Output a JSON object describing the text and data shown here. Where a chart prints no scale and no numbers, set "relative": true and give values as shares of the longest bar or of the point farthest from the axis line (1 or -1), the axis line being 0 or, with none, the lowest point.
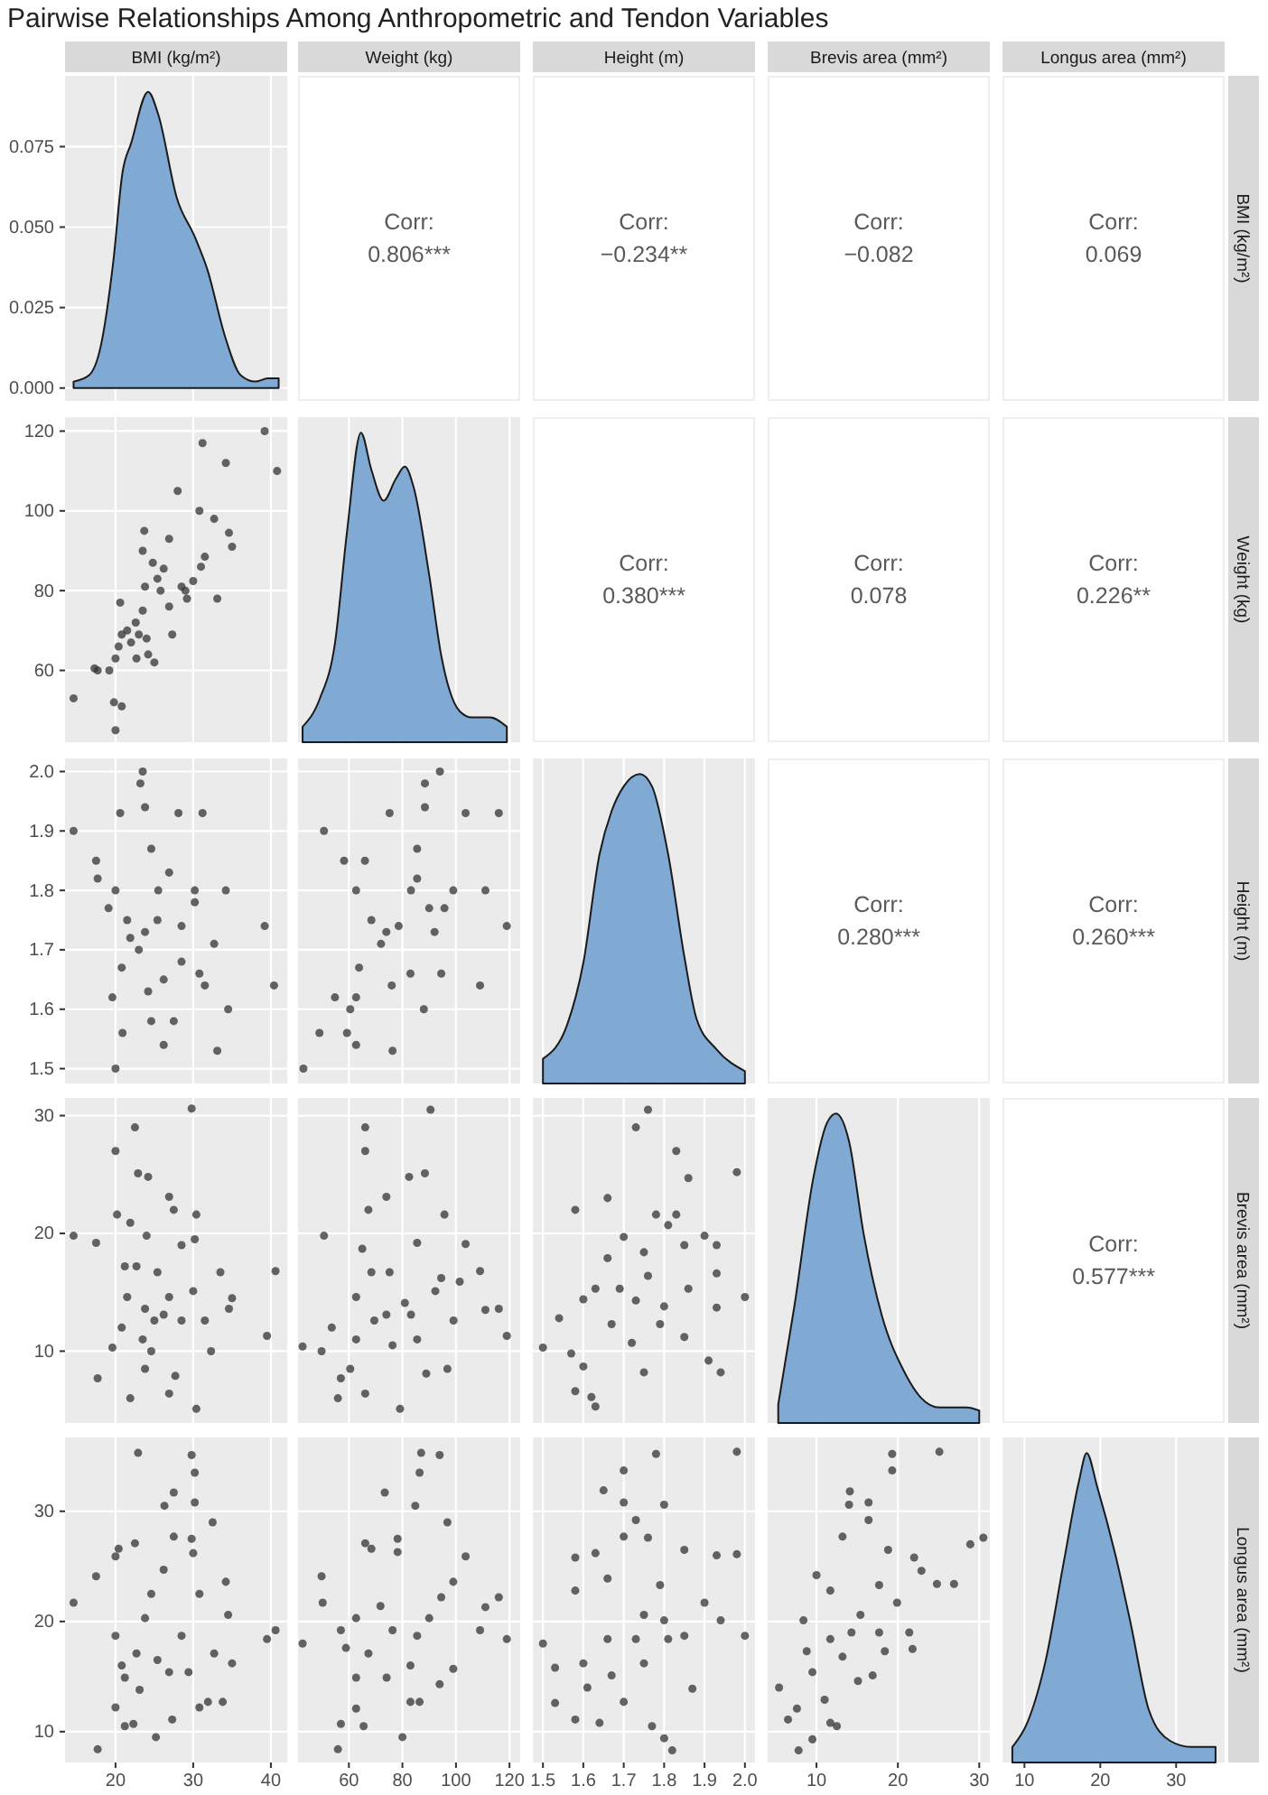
{
  "chart_data": [
    {
      "type": "other",
      "title": "Pairwise Relationships Among Anthropometric and Tendon Variables"
    },
    {
      "type": "area",
      "title": "BMI (kg/m²)",
      "x": [
        14.6,
        16.6,
        18.1,
        19.7,
        20.9,
        22,
        24.2,
        25.5,
        27.9,
        30.2,
        31.8,
        34.1,
        36.1,
        38,
        39.6,
        41
      ],
      "values": [
        0.002,
        0.004,
        0.013,
        0.039,
        0.067,
        0.076,
        0.092,
        0.085,
        0.059,
        0.047,
        0.037,
        0.016,
        0.004,
        0.002,
        0.003,
        0.003
      ],
      "color": "#7aa6d2",
      "xlim": [
        13.5,
        42.1
      ],
      "ylim": [
        -0.004,
        0.097
      ],
      "xticks": [
        20,
        30,
        40
      ],
      "yticks": [
        {
          "value": 0,
          "label": "0.000"
        },
        0.025,
        {
          "value": 0.05,
          "label": "0.050"
        },
        0.075
      ],
      "grid": true,
      "tick_labels": "y"
    },
    {
      "type": "other",
      "title": "Weight (kg)",
      "annotations": [
        "Corr:",
        "0.806***"
      ]
    },
    {
      "type": "other",
      "title": "Height (m)",
      "annotations": [
        "Corr:",
        "−0.234**"
      ]
    },
    {
      "type": "other",
      "title": "Brevis area (mm²)",
      "annotations": [
        "Corr:",
        "−0.082"
      ]
    },
    {
      "type": "other",
      "title": "Longus area (mm²)",
      "y2label": "BMI (kg/m²)",
      "annotations": [
        "Corr:",
        "0.069"
      ]
    },
    {
      "type": "scatter",
      "marker": "circle",
      "color": "#333333",
      "x": [
        14.6,
        20,
        20.8,
        19.8,
        17.7,
        17.3,
        19.2,
        20,
        20.4,
        20.8,
        21.5,
        20.6,
        23,
        22.6,
        23.5,
        23.8,
        23.5,
        23.7,
        24.8,
        25.4,
        26.2,
        26.9,
        28,
        26.9,
        27.3,
        28.5,
        30,
        30.8,
        31.5,
        31.2,
        34.2,
        33.1,
        32.7,
        34.6,
        35,
        39.2,
        40.8,
        29.2,
        24.2,
        25,
        22.7,
        22,
        25.8,
        29,
        31,
        24
      ],
      "values": [
        53,
        45,
        51,
        52,
        60,
        60.5,
        60,
        63,
        66,
        69,
        70,
        77,
        69,
        72,
        75,
        81,
        90,
        95,
        87,
        83,
        85.5,
        93,
        105,
        76,
        69,
        81,
        82.4,
        100,
        88.5,
        117,
        112,
        78,
        98,
        94.5,
        91,
        120,
        110,
        78,
        64,
        62,
        63,
        67,
        80,
        80,
        86,
        68
      ],
      "xlim": [
        13.5,
        42.1
      ],
      "ylim": [
        42,
        123.5
      ],
      "xticks": [
        20,
        30,
        40
      ],
      "yticks": [
        60,
        80,
        100,
        120
      ],
      "grid": true,
      "tick_labels": "y"
    },
    {
      "type": "area",
      "relative": true,
      "x": [
        42.7,
        49.1,
        54.8,
        59.3,
        64.5,
        68.4,
        73,
        77.5,
        80.9,
        84.3,
        90,
        94.5,
        101.4,
        106,
        112.7,
        119
      ],
      "values": [
        0.05,
        0.14,
        0.32,
        0.68,
        1,
        0.88,
        0.78,
        0.85,
        0.89,
        0.82,
        0.54,
        0.28,
        0.1,
        0.08,
        0.08,
        0.05
      ],
      "color": "#7aa6d2",
      "xlim": [
        41,
        124
      ],
      "xticks": [
        60,
        80,
        100,
        120
      ],
      "grid": "x",
      "tick_labels": false
    },
    {
      "type": "other",
      "annotations": [
        "Corr:",
        "0.380***"
      ]
    },
    {
      "type": "other",
      "annotations": [
        "Corr:",
        "0.078"
      ]
    },
    {
      "type": "other",
      "y2label": "Weight (kg)",
      "annotations": [
        "Corr:",
        "0.226**"
      ]
    },
    {
      "type": "scatter",
      "marker": "circle",
      "color": "#333333",
      "x": [
        14.6,
        23.5,
        23.2,
        23.8,
        20.6,
        28.1,
        31.2,
        17.5,
        17.7,
        20,
        19.1,
        21.5,
        24.6,
        25.5,
        26.9,
        30.2,
        34.2,
        39.2,
        40.4,
        32.7,
        30.8,
        28.5,
        26.2,
        23,
        20.8,
        19.6,
        20.9,
        24.6,
        26.2,
        33.1,
        34.5,
        24.2,
        27.5,
        30.2,
        23.8,
        25.4,
        21.9,
        20,
        31.5,
        28.5
      ],
      "values": [
        1.9,
        2.0,
        1.98,
        1.94,
        1.93,
        1.93,
        1.93,
        1.85,
        1.82,
        1.8,
        1.77,
        1.75,
        1.87,
        1.8,
        1.83,
        1.8,
        1.8,
        1.74,
        1.64,
        1.71,
        1.66,
        1.68,
        1.65,
        1.7,
        1.67,
        1.62,
        1.56,
        1.58,
        1.54,
        1.53,
        1.6,
        1.63,
        1.58,
        1.78,
        1.73,
        1.75,
        1.72,
        1.5,
        1.64,
        1.74
      ],
      "xlim": [
        13.5,
        42.1
      ],
      "ylim": [
        1.475,
        2.022
      ],
      "xticks": [
        20,
        30,
        40
      ],
      "yticks": [
        1.5,
        1.6,
        1.7,
        1.8,
        1.9,
        {
          "value": 2,
          "label": "2.0"
        }
      ],
      "grid": true,
      "tick_labels": "y"
    },
    {
      "type": "scatter",
      "marker": "circle",
      "color": "#333333",
      "x": [
        43,
        50.7,
        94,
        88.4,
        88.4,
        75.2,
        103.6,
        116,
        58.2,
        62.7,
        68.4,
        85.5,
        83.2,
        99,
        111,
        119,
        109,
        49,
        59.3,
        62.7,
        76.3,
        88,
        83,
        94.5,
        76,
        72,
        63.8,
        54.8,
        62.7,
        92,
        95.7,
        85.5,
        74,
        66,
        78.6,
        90,
        60.5
      ],
      "values": [
        1.5,
        1.9,
        2.0,
        1.98,
        1.94,
        1.93,
        1.93,
        1.93,
        1.85,
        1.8,
        1.75,
        1.87,
        1.8,
        1.8,
        1.8,
        1.74,
        1.64,
        1.56,
        1.56,
        1.54,
        1.53,
        1.6,
        1.66,
        1.66,
        1.64,
        1.71,
        1.67,
        1.62,
        1.62,
        1.73,
        1.77,
        1.82,
        1.73,
        1.85,
        1.74,
        1.77,
        1.6
      ],
      "xlim": [
        41,
        124
      ],
      "ylim": [
        1.475,
        2.022
      ],
      "xticks": [
        60,
        80,
        100,
        120
      ],
      "yticks": [
        1.5,
        1.6,
        1.7,
        1.8,
        1.9,
        2
      ],
      "grid": true,
      "tick_labels": false
    },
    {
      "type": "area",
      "relative": true,
      "x": [
        1.5,
        1.56,
        1.6,
        1.64,
        1.67,
        1.7,
        1.74,
        1.77,
        1.81,
        1.85,
        1.88,
        1.93,
        2.0
      ],
      "values": [
        0.08,
        0.19,
        0.39,
        0.74,
        0.88,
        0.96,
        1,
        0.96,
        0.74,
        0.41,
        0.21,
        0.11,
        0.04
      ],
      "color": "#7aa6d2",
      "xlim": [
        1.475,
        2.025
      ],
      "xticks": [
        1.5,
        1.6,
        1.7,
        1.8,
        1.9,
        2
      ],
      "grid": "x",
      "tick_labels": false
    },
    {
      "type": "other",
      "annotations": [
        "Corr:",
        "0.280***"
      ]
    },
    {
      "type": "other",
      "y2label": "Height (m)",
      "annotations": [
        "Corr:",
        "0.260***"
      ]
    },
    {
      "type": "scatter",
      "marker": "circle",
      "color": "#333333",
      "x": [
        14.6,
        17.5,
        17.7,
        20,
        22.5,
        22.9,
        24.2,
        26.9,
        27.5,
        29.8,
        30.4,
        20.2,
        21.9,
        24,
        30.2,
        28.5,
        39.5,
        40.6,
        34.6,
        35,
        33.5,
        31.5,
        32.3,
        30.4,
        26.9,
        21.9,
        23.8,
        24.6,
        23.5,
        20.8,
        19.6,
        21.5,
        22.7,
        25.4,
        26.9,
        28.5,
        26.2,
        30,
        27.7,
        23.8,
        25,
        21.2
      ],
      "values": [
        19.8,
        19.2,
        7.7,
        27,
        29,
        25.1,
        24.8,
        23.1,
        22,
        30.6,
        21.6,
        21.6,
        20.9,
        19.8,
        19.5,
        19,
        11.3,
        16.8,
        13.6,
        14.5,
        16.7,
        12.6,
        10,
        5.1,
        6.4,
        6,
        8.5,
        10,
        11,
        12,
        10.3,
        14.6,
        17.2,
        16.7,
        14.6,
        12.6,
        13.1,
        15.1,
        7.9,
        13.6,
        12.6,
        17.2
      ],
      "xlim": [
        13.5,
        42.1
      ],
      "ylim": [
        3.9,
        31.5
      ],
      "xticks": [
        20,
        30,
        40
      ],
      "yticks": [
        10,
        20,
        30
      ],
      "grid": true,
      "tick_labels": "y"
    },
    {
      "type": "scatter",
      "marker": "circle",
      "color": "#333333",
      "x": [
        42.7,
        50.7,
        49.8,
        55.9,
        57,
        66.1,
        66.1,
        67.3,
        74,
        82.5,
        88.4,
        90.5,
        95.7,
        103.6,
        109,
        111,
        116,
        119,
        96.8,
        88.9,
        79.1,
        66.1,
        60.5,
        53.6,
        62.7,
        68.4,
        75.2,
        80.9,
        85.5,
        92.3,
        99.1,
        69.5,
        62.7,
        76.3,
        85.5,
        94.5,
        65,
        74,
        101.4,
        83.2
      ],
      "values": [
        10.4,
        19.8,
        10,
        6,
        7.7,
        29,
        27,
        22,
        23.1,
        24.8,
        25.1,
        30.5,
        21.6,
        19.1,
        16.8,
        13.5,
        13.6,
        11.3,
        8.5,
        8.1,
        5.1,
        6.4,
        8.5,
        12,
        14.6,
        16.7,
        16.7,
        14.1,
        11,
        15.1,
        12.6,
        12.6,
        11,
        10.5,
        19.2,
        16.2,
        18.7,
        13.1,
        15.9,
        13.1
      ],
      "xlim": [
        41,
        124
      ],
      "ylim": [
        3.9,
        31.5
      ],
      "xticks": [
        60,
        80,
        100,
        120
      ],
      "yticks": [
        10,
        20,
        30
      ],
      "grid": true,
      "tick_labels": false
    },
    {
      "type": "scatter",
      "marker": "circle",
      "color": "#333333",
      "x": [
        1.76,
        1.73,
        1.83,
        1.98,
        1.86,
        1.66,
        1.58,
        1.78,
        1.83,
        1.81,
        1.9,
        1.93,
        1.7,
        1.75,
        1.66,
        1.85,
        1.93,
        2.0,
        1.93,
        1.63,
        1.6,
        1.54,
        1.5,
        1.57,
        1.6,
        1.58,
        1.62,
        1.63,
        1.72,
        1.79,
        1.85,
        1.91,
        1.94,
        1.75,
        1.67,
        1.73,
        1.8,
        1.69,
        1.76,
        1.86
      ],
      "values": [
        30.5,
        29,
        27,
        25.2,
        24.7,
        23,
        22,
        21.6,
        21.6,
        20.7,
        19.8,
        19,
        19.7,
        18.4,
        17.9,
        19,
        16.6,
        14.6,
        13.7,
        15.3,
        14.4,
        12.8,
        10.3,
        9.8,
        8.7,
        6.6,
        6.1,
        5.3,
        10.7,
        12.3,
        11.2,
        9.2,
        8.2,
        8.2,
        12.3,
        14.3,
        13.8,
        15.3,
        16.4,
        15.3
      ],
      "xlim": [
        1.475,
        2.025
      ],
      "ylim": [
        3.9,
        31.5
      ],
      "xticks": [
        1.5,
        1.6,
        1.7,
        1.8,
        1.9,
        2
      ],
      "yticks": [
        10,
        20,
        30
      ],
      "grid": true,
      "tick_labels": false
    },
    {
      "type": "area",
      "relative": true,
      "x": [
        5.3,
        7.3,
        9.6,
        11.3,
        12.4,
        14,
        15.8,
        18,
        20.7,
        22.9,
        25.1,
        28.4,
        30
      ],
      "values": [
        0.06,
        0.38,
        0.79,
        0.97,
        1,
        0.91,
        0.61,
        0.35,
        0.17,
        0.08,
        0.05,
        0.05,
        0.04
      ],
      "color": "#7aa6d2",
      "xlim": [
        4,
        31.3
      ],
      "xticks": [
        10,
        20,
        30
      ],
      "grid": "x",
      "tick_labels": false
    },
    {
      "type": "other",
      "y2label": "Brevis area (mm²)",
      "annotations": [
        "Corr:",
        "0.577***"
      ]
    },
    {
      "type": "scatter",
      "marker": "circle",
      "color": "#333333",
      "x": [
        14.6,
        17.5,
        17.7,
        20,
        21.2,
        22.3,
        25.2,
        22.9,
        29.8,
        30.2,
        30.2,
        27.5,
        26.3,
        32.5,
        22.5,
        20.4,
        20,
        27.5,
        29.8,
        30,
        34.2,
        34.5,
        39.5,
        40.6,
        35,
        33.8,
        31.9,
        30.8,
        27.3,
        20,
        21.2,
        22.7,
        23.8,
        24.6,
        26.2,
        28.5,
        30.8,
        32.7,
        25.4,
        20.8,
        23.1,
        26.9,
        29.4
      ],
      "values": [
        21.7,
        24.1,
        8.4,
        12.2,
        10.5,
        10.7,
        9.5,
        35.3,
        35.1,
        33.5,
        30.8,
        31.7,
        30.5,
        29,
        27.1,
        26.6,
        25.9,
        27.7,
        27.5,
        26.2,
        23.6,
        20.6,
        18.4,
        19.2,
        16.2,
        12.7,
        12.7,
        12.2,
        11.1,
        18.7,
        14.9,
        17.1,
        20.3,
        22.5,
        24.7,
        18.7,
        22.5,
        17.1,
        16.5,
        16,
        13.8,
        15.4,
        15.4
      ],
      "xlim": [
        13.5,
        42.1
      ],
      "ylim": [
        7.2,
        36.7
      ],
      "xticks": [
        20,
        30,
        40
      ],
      "yticks": [
        10,
        20,
        30
      ],
      "grid": true
    },
    {
      "type": "scatter",
      "marker": "circle",
      "color": "#333333",
      "x": [
        42.7,
        49.8,
        50.2,
        55.9,
        57,
        58.9,
        62.7,
        65.5,
        73.4,
        87,
        93.9,
        86.4,
        84.8,
        96.8,
        66.1,
        68.4,
        78.2,
        78.2,
        103.6,
        116,
        111,
        109,
        119,
        99,
        94.5,
        99,
        93.9,
        86.4,
        83,
        80,
        62.7,
        71.8,
        76.3,
        85.5,
        90,
        67.3,
        74.1,
        62.7,
        83,
        57
      ],
      "values": [
        18,
        24.1,
        21.7,
        8.4,
        10.7,
        17.6,
        12.1,
        10.5,
        31.7,
        35.3,
        35.1,
        33.5,
        30.5,
        29,
        27.1,
        26.6,
        27.5,
        26.3,
        25.9,
        22.2,
        21.3,
        19.2,
        18.4,
        23.6,
        22.2,
        15.7,
        14.3,
        12.7,
        12.7,
        9.5,
        20.3,
        21.4,
        19.2,
        18.7,
        20.3,
        17.1,
        14.9,
        14.9,
        16,
        19.2
      ],
      "xlim": [
        41,
        124
      ],
      "ylim": [
        7.2,
        36.7
      ],
      "xticks": [
        60,
        80,
        100,
        120
      ],
      "yticks": [
        10,
        20,
        30
      ],
      "grid": true,
      "tick_labels": "x"
    },
    {
      "type": "scatter",
      "marker": "circle",
      "color": "#333333",
      "x": [
        1.78,
        1.98,
        1.7,
        1.7,
        1.8,
        1.65,
        1.73,
        1.7,
        1.76,
        1.63,
        1.58,
        1.85,
        1.93,
        1.98,
        1.58,
        1.5,
        1.53,
        1.53,
        1.58,
        1.64,
        1.77,
        1.8,
        1.82,
        2.0,
        1.94,
        1.9,
        1.87,
        1.7,
        1.61,
        1.6,
        1.66,
        1.73,
        1.75,
        1.8,
        1.81,
        1.85,
        1.67,
        1.75,
        1.66,
        1.79
      ],
      "values": [
        35.2,
        35.4,
        33.7,
        30.8,
        30.6,
        31.9,
        29.2,
        27.7,
        27.6,
        26.2,
        25.8,
        26.5,
        26,
        26.1,
        22.8,
        18,
        15.8,
        12.6,
        11.1,
        10.8,
        10.5,
        9.4,
        8.3,
        18.7,
        20.1,
        21.7,
        13.9,
        12.7,
        14,
        16.2,
        18.4,
        18.4,
        20.6,
        20.1,
        18.4,
        18.7,
        15.1,
        16.2,
        23.9,
        23.3
      ],
      "xlim": [
        1.475,
        2.025
      ],
      "ylim": [
        7.2,
        36.7
      ],
      "xticks": [
        1.5,
        1.6,
        1.7,
        1.8,
        1.9,
        {
          "value": 2,
          "label": "2.0"
        }
      ],
      "yticks": [
        10,
        20,
        30
      ],
      "grid": true,
      "tick_labels": "x"
    },
    {
      "type": "scatter",
      "marker": "circle",
      "color": "#333333",
      "x": [
        19.3,
        25.1,
        19.3,
        14.1,
        14,
        16.4,
        16.4,
        13.2,
        28.9,
        30.5,
        18.8,
        22,
        24.8,
        26.9,
        22.9,
        10,
        5.4,
        6.5,
        7.6,
        9.5,
        7.8,
        11.7,
        12.5,
        11,
        9.5,
        8.4,
        8.8,
        11.7,
        13.2,
        14.3,
        15.4,
        17.7,
        19.9,
        21.4,
        21.8,
        18.4,
        16.9,
        15.1,
        11.7,
        17.7
      ],
      "values": [
        35.2,
        35.4,
        33.7,
        31.8,
        30.6,
        30.8,
        29.2,
        27.7,
        27,
        27.6,
        26.5,
        25.8,
        23.4,
        23.4,
        24.6,
        24.2,
        14,
        11.1,
        12.1,
        9.3,
        8.3,
        10.8,
        10.5,
        12.9,
        15.4,
        20.1,
        17.3,
        18.4,
        16.8,
        19,
        20.6,
        19,
        21.7,
        19,
        17.5,
        17.3,
        15.1,
        14.6,
        22.8,
        23.3
      ],
      "xlim": [
        4,
        31.3
      ],
      "ylim": [
        7.2,
        36.7
      ],
      "xticks": [
        10,
        20,
        30
      ],
      "yticks": [
        10,
        20,
        30
      ],
      "grid": true,
      "tick_labels": "x"
    },
    {
      "type": "area",
      "relative": true,
      "y2label": "Longus area (mm²)",
      "x": [
        8.4,
        10.4,
        12.8,
        15.2,
        17.2,
        18.2,
        19.6,
        22,
        24,
        26.4,
        29.2,
        32,
        35.2
      ],
      "values": [
        0.05,
        0.13,
        0.33,
        0.65,
        0.91,
        1,
        0.89,
        0.67,
        0.45,
        0.17,
        0.07,
        0.05,
        0.05
      ],
      "color": "#7aa6d2",
      "xlim": [
        7.1,
        36.4
      ],
      "xticks": [
        10,
        20,
        30
      ],
      "grid": "x",
      "tick_labels": "x"
    }
  ]
}
